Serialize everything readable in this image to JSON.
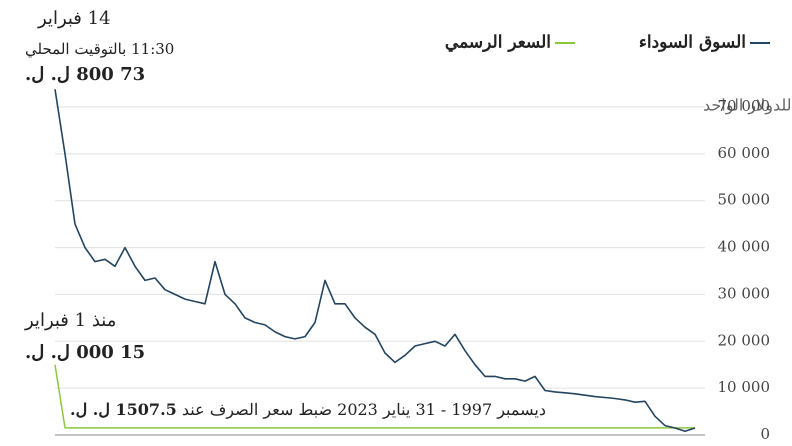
{
  "chart_data": {
    "type": "line",
    "unit_label": "ليرة لبنانية للدولار الواحد",
    "annotations": {
      "latest_date": "14 فبراير",
      "latest_time": "11:30 بالتوقيت المحلي",
      "latest_value": "73 800 ل. ل.",
      "official_since": "منذ 1 فبراير",
      "official_value": "15 000 ل. ل.",
      "peg_note": "ديسمبر 1997 - 31 يناير 2023 ضبط سعر الصرف عند",
      "peg_value": "1507.5 ل. ل."
    },
    "categories": [
      null,
      null,
      null,
      null,
      null,
      null,
      null,
      null,
      null,
      null,
      null,
      null,
      null,
      null,
      null,
      null,
      null,
      null,
      null,
      null,
      null,
      null,
      null,
      null,
      null,
      null,
      null,
      null,
      null,
      null,
      null,
      null,
      null,
      null,
      null,
      null,
      null,
      null,
      null,
      null,
      null,
      null,
      null,
      null,
      null,
      null,
      null,
      null,
      null,
      null,
      null,
      null,
      null,
      null,
      null,
      null,
      null,
      null,
      null,
      null,
      null,
      null,
      null,
      null,
      null
    ],
    "series": [
      {
        "name": "السوق السوداء",
        "color": "#24455f",
        "values": [
          73800,
          60000,
          45000,
          40000,
          37000,
          37500,
          36000,
          40000,
          36000,
          33000,
          33500,
          31000,
          30000,
          29000,
          28500,
          28000,
          37000,
          30000,
          28000,
          25000,
          24000,
          23500,
          22000,
          21000,
          20500,
          21000,
          24000,
          33000,
          28000,
          28000,
          25000,
          23000,
          21500,
          17500,
          15500,
          17000,
          19000,
          19500,
          20000,
          19000,
          21500,
          18000,
          15000,
          12500,
          12500,
          12000,
          12000,
          11500,
          12500,
          9500,
          9200,
          9000,
          8800,
          8500,
          8200,
          8000,
          7800,
          7500,
          7000,
          7200,
          4000,
          2000,
          1500,
          800,
          1500
        ]
      },
      {
        "name": "السعر الرسمي",
        "color": "#8cc63f",
        "values": [
          15000,
          1507.5,
          1507.5,
          1507.5,
          1507.5,
          1507.5,
          1507.5,
          1507.5,
          1507.5,
          1507.5,
          1507.5,
          1507.5,
          1507.5,
          1507.5,
          1507.5,
          1507.5,
          1507.5,
          1507.5,
          1507.5,
          1507.5,
          1507.5,
          1507.5,
          1507.5,
          1507.5,
          1507.5,
          1507.5,
          1507.5,
          1507.5,
          1507.5,
          1507.5,
          1507.5,
          1507.5,
          1507.5,
          1507.5,
          1507.5,
          1507.5,
          1507.5,
          1507.5,
          1507.5,
          1507.5,
          1507.5,
          1507.5,
          1507.5,
          1507.5,
          1507.5,
          1507.5,
          1507.5,
          1507.5,
          1507.5,
          1507.5,
          1507.5,
          1507.5,
          1507.5,
          1507.5,
          1507.5,
          1507.5,
          1507.5,
          1507.5,
          1507.5,
          1507.5,
          1507.5,
          1507.5,
          1507.5,
          1507.5,
          1507.5
        ]
      }
    ],
    "ylim": [
      0,
      70000
    ],
    "yticks": [
      0,
      {
        "value": 10000,
        "label": "10 000"
      },
      {
        "value": 20000,
        "label": "20 000"
      },
      {
        "value": 30000,
        "label": "30 000"
      },
      {
        "value": 40000,
        "label": "40 000"
      },
      {
        "value": 50000,
        "label": "50 000"
      },
      {
        "value": 60000,
        "label": "60 000"
      },
      {
        "value": 70000,
        "label": "70 000"
      }
    ],
    "grid": true
  }
}
